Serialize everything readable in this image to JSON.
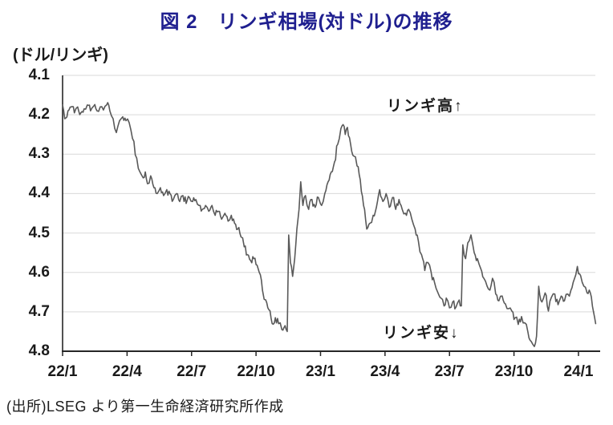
{
  "title": "図 2　リンギ相場(対ドル)の推移",
  "unit_label": "(ドル/リンギ)",
  "annotations": {
    "high": "リンギ高↑",
    "low": "リンギ安↓"
  },
  "source": "(出所)LSEG より第一生命経済研究所作成",
  "colors": {
    "title": "#1f1f8f",
    "text": "#1a1a1a",
    "line": "#595959",
    "grid": "#d9d9d9",
    "axis": "#262626"
  },
  "chart_data": {
    "type": "line",
    "title": "図 2 リンギ相場(対ドル)の推移",
    "ylabel": "(ドル/リンギ)",
    "xlabel": "",
    "x_unit": "months since 2022-01",
    "x_tick_labels": [
      "22/1",
      "22/4",
      "22/7",
      "22/10",
      "23/1",
      "23/4",
      "23/7",
      "23/10",
      "24/1"
    ],
    "x_tick_months": [
      0,
      3,
      6,
      9,
      12,
      15,
      18,
      21,
      24
    ],
    "xlim": [
      0,
      24.8
    ],
    "ylim": [
      4.1,
      4.8
    ],
    "y_ticks": [
      4.1,
      4.2,
      4.3,
      4.4,
      4.5,
      4.6,
      4.7,
      4.8
    ],
    "y_axis_inverted": true,
    "grid": true,
    "legend": "none",
    "annotations": [
      {
        "text": "リンギ高↑",
        "meaning": "ringgit appreciation (up)"
      },
      {
        "text": "リンギ安↓",
        "meaning": "ringgit depreciation (down)"
      }
    ],
    "series": [
      {
        "name": "USD/MYR",
        "points": [
          [
            0.0,
            4.175
          ],
          [
            0.1,
            4.21
          ],
          [
            0.25,
            4.19
          ],
          [
            0.4,
            4.18
          ],
          [
            0.55,
            4.195
          ],
          [
            0.7,
            4.18
          ],
          [
            0.85,
            4.195
          ],
          [
            1.0,
            4.185
          ],
          [
            1.15,
            4.175
          ],
          [
            1.3,
            4.19
          ],
          [
            1.45,
            4.178
          ],
          [
            1.6,
            4.19
          ],
          [
            1.75,
            4.18
          ],
          [
            1.9,
            4.188
          ],
          [
            2.05,
            4.175
          ],
          [
            2.2,
            4.19
          ],
          [
            2.35,
            4.21
          ],
          [
            2.5,
            4.245
          ],
          [
            2.65,
            4.215
          ],
          [
            2.8,
            4.205
          ],
          [
            2.95,
            4.215
          ],
          [
            3.1,
            4.22
          ],
          [
            3.25,
            4.26
          ],
          [
            3.45,
            4.31
          ],
          [
            3.6,
            4.345
          ],
          [
            3.75,
            4.36
          ],
          [
            3.85,
            4.345
          ],
          [
            3.95,
            4.375
          ],
          [
            4.1,
            4.355
          ],
          [
            4.25,
            4.385
          ],
          [
            4.4,
            4.4
          ],
          [
            4.55,
            4.385
          ],
          [
            4.7,
            4.405
          ],
          [
            4.85,
            4.39
          ],
          [
            5.0,
            4.4
          ],
          [
            5.15,
            4.415
          ],
          [
            5.3,
            4.4
          ],
          [
            5.45,
            4.42
          ],
          [
            5.6,
            4.405
          ],
          [
            5.75,
            4.425
          ],
          [
            5.9,
            4.41
          ],
          [
            6.05,
            4.42
          ],
          [
            6.2,
            4.415
          ],
          [
            6.35,
            4.43
          ],
          [
            6.5,
            4.44
          ],
          [
            6.65,
            4.43
          ],
          [
            6.8,
            4.445
          ],
          [
            6.95,
            4.43
          ],
          [
            7.1,
            4.455
          ],
          [
            7.25,
            4.445
          ],
          [
            7.4,
            4.465
          ],
          [
            7.55,
            4.45
          ],
          [
            7.7,
            4.47
          ],
          [
            7.85,
            4.455
          ],
          [
            8.0,
            4.475
          ],
          [
            8.15,
            4.49
          ],
          [
            8.3,
            4.51
          ],
          [
            8.45,
            4.535
          ],
          [
            8.6,
            4.555
          ],
          [
            8.75,
            4.57
          ],
          [
            8.85,
            4.56
          ],
          [
            9.0,
            4.58
          ],
          [
            9.15,
            4.6
          ],
          [
            9.3,
            4.645
          ],
          [
            9.45,
            4.67
          ],
          [
            9.6,
            4.695
          ],
          [
            9.75,
            4.73
          ],
          [
            9.9,
            4.715
          ],
          [
            10.05,
            4.73
          ],
          [
            10.2,
            4.745
          ],
          [
            10.35,
            4.735
          ],
          [
            10.45,
            4.75
          ],
          [
            10.52,
            4.505
          ],
          [
            10.6,
            4.575
          ],
          [
            10.7,
            4.61
          ],
          [
            10.8,
            4.565
          ],
          [
            10.9,
            4.49
          ],
          [
            11.0,
            4.44
          ],
          [
            11.08,
            4.37
          ],
          [
            11.18,
            4.43
          ],
          [
            11.3,
            4.405
          ],
          [
            11.45,
            4.44
          ],
          [
            11.6,
            4.415
          ],
          [
            11.75,
            4.435
          ],
          [
            11.9,
            4.41
          ],
          [
            12.05,
            4.43
          ],
          [
            12.2,
            4.4
          ],
          [
            12.35,
            4.37
          ],
          [
            12.5,
            4.345
          ],
          [
            12.65,
            4.32
          ],
          [
            12.8,
            4.275
          ],
          [
            12.95,
            4.235
          ],
          [
            13.05,
            4.225
          ],
          [
            13.15,
            4.25
          ],
          [
            13.25,
            4.232
          ],
          [
            13.4,
            4.275
          ],
          [
            13.55,
            4.305
          ],
          [
            13.7,
            4.33
          ],
          [
            13.85,
            4.365
          ],
          [
            14.0,
            4.43
          ],
          [
            14.15,
            4.49
          ],
          [
            14.3,
            4.475
          ],
          [
            14.45,
            4.455
          ],
          [
            14.6,
            4.435
          ],
          [
            14.75,
            4.39
          ],
          [
            14.9,
            4.42
          ],
          [
            15.05,
            4.4
          ],
          [
            15.2,
            4.435
          ],
          [
            15.35,
            4.41
          ],
          [
            15.5,
            4.44
          ],
          [
            15.65,
            4.415
          ],
          [
            15.8,
            4.44
          ],
          [
            15.95,
            4.45
          ],
          [
            16.1,
            4.44
          ],
          [
            16.25,
            4.465
          ],
          [
            16.4,
            4.49
          ],
          [
            16.55,
            4.52
          ],
          [
            16.7,
            4.555
          ],
          [
            16.85,
            4.595
          ],
          [
            17.0,
            4.575
          ],
          [
            17.15,
            4.6
          ],
          [
            17.3,
            4.625
          ],
          [
            17.45,
            4.65
          ],
          [
            17.6,
            4.665
          ],
          [
            17.75,
            4.685
          ],
          [
            17.85,
            4.665
          ],
          [
            18.0,
            4.69
          ],
          [
            18.15,
            4.675
          ],
          [
            18.3,
            4.688
          ],
          [
            18.45,
            4.67
          ],
          [
            18.55,
            4.685
          ],
          [
            18.62,
            4.53
          ],
          [
            18.75,
            4.565
          ],
          [
            18.85,
            4.525
          ],
          [
            19.0,
            4.505
          ],
          [
            19.15,
            4.55
          ],
          [
            19.3,
            4.565
          ],
          [
            19.45,
            4.59
          ],
          [
            19.6,
            4.615
          ],
          [
            19.75,
            4.635
          ],
          [
            19.88,
            4.645
          ],
          [
            20.0,
            4.615
          ],
          [
            20.15,
            4.655
          ],
          [
            20.3,
            4.672
          ],
          [
            20.45,
            4.66
          ],
          [
            20.6,
            4.68
          ],
          [
            20.75,
            4.692
          ],
          [
            20.9,
            4.698
          ],
          [
            21.05,
            4.715
          ],
          [
            21.2,
            4.732
          ],
          [
            21.35,
            4.712
          ],
          [
            21.5,
            4.728
          ],
          [
            21.65,
            4.752
          ],
          [
            21.8,
            4.775
          ],
          [
            21.95,
            4.788
          ],
          [
            22.05,
            4.762
          ],
          [
            22.15,
            4.635
          ],
          [
            22.3,
            4.675
          ],
          [
            22.45,
            4.652
          ],
          [
            22.6,
            4.698
          ],
          [
            22.75,
            4.662
          ],
          [
            22.9,
            4.655
          ],
          [
            23.05,
            4.682
          ],
          [
            23.2,
            4.66
          ],
          [
            23.35,
            4.672
          ],
          [
            23.5,
            4.655
          ],
          [
            23.65,
            4.645
          ],
          [
            23.8,
            4.618
          ],
          [
            23.95,
            4.585
          ],
          [
            24.1,
            4.608
          ],
          [
            24.25,
            4.635
          ],
          [
            24.4,
            4.652
          ],
          [
            24.5,
            4.645
          ],
          [
            24.6,
            4.662
          ],
          [
            24.7,
            4.7
          ],
          [
            24.8,
            4.73
          ]
        ]
      }
    ]
  }
}
